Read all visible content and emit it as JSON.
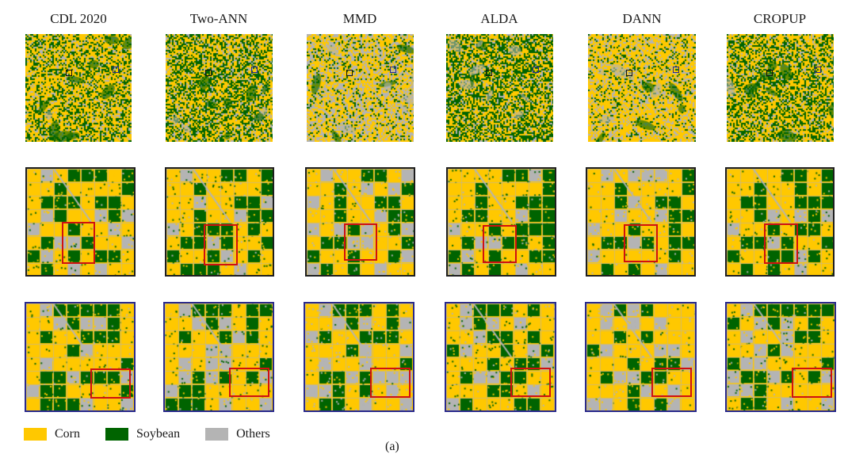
{
  "figure": {
    "columns": [
      "CDL 2020",
      "Two-ANN",
      "MMD",
      "ALDA",
      "DANN",
      "CROPUP"
    ],
    "legend": [
      {
        "label": "Corn",
        "color": "#ffc800"
      },
      {
        "label": "Soybean",
        "color": "#006400"
      },
      {
        "label": "Others",
        "color": "#b4b4b4"
      }
    ],
    "caption": "(a)",
    "class_mix": {
      "CDL 2020": {
        "corn": 0.55,
        "soy": 0.33,
        "other": 0.12
      },
      "Two-ANN": {
        "corn": 0.45,
        "soy": 0.4,
        "other": 0.15
      },
      "MMD": {
        "corn": 0.5,
        "soy": 0.15,
        "other": 0.35
      },
      "ALDA": {
        "corn": 0.42,
        "soy": 0.45,
        "other": 0.13
      },
      "DANN": {
        "corn": 0.62,
        "soy": 0.15,
        "other": 0.23
      },
      "CROPUP": {
        "corn": 0.5,
        "soy": 0.38,
        "other": 0.12
      }
    },
    "border_colors": {
      "row2": "#1e1e1e",
      "row3": "#2a2a8c",
      "highlight": "#d01010"
    }
  }
}
